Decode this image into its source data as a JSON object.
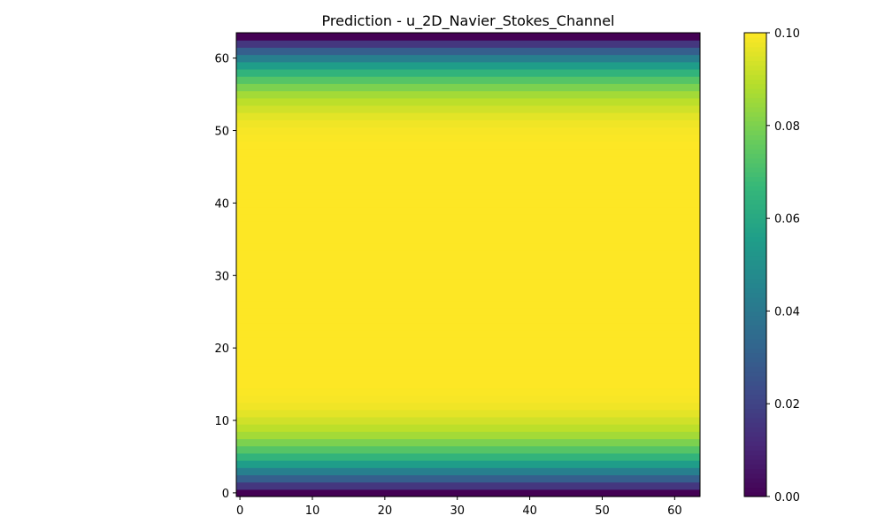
{
  "chart_data": {
    "type": "heatmap",
    "title": "Prediction - u_2D_Navier_Stokes_Channel",
    "xlabel": "",
    "ylabel": "",
    "grid": false,
    "xlim": [
      -0.5,
      63.5
    ],
    "ylim": [
      -0.5,
      63.5
    ],
    "xticks": [
      0,
      10,
      20,
      30,
      40,
      50,
      60
    ],
    "yticks": [
      0,
      10,
      20,
      30,
      40,
      50,
      60
    ],
    "colormap": "viridis",
    "colorbar": {
      "vmin": 0.0,
      "vmax": 0.1,
      "ticks": [
        0.0,
        0.02,
        0.04,
        0.06,
        0.08,
        0.1
      ],
      "tick_labels": [
        "0.00",
        "0.02",
        "0.04",
        "0.06",
        "0.08",
        "0.10"
      ]
    },
    "grid_size": [
      64,
      64
    ],
    "profile_note_rows": "value per row (y index 0..63), constant along x",
    "row_values": [
      0.0,
      0.016,
      0.03,
      0.043,
      0.055,
      0.065,
      0.073,
      0.08,
      0.086,
      0.09,
      0.093,
      0.096,
      0.098,
      0.099,
      0.0995,
      0.1,
      0.1,
      0.1,
      0.1,
      0.1,
      0.1,
      0.1,
      0.1,
      0.1,
      0.1,
      0.1,
      0.1,
      0.1,
      0.1,
      0.1,
      0.1,
      0.1,
      0.1,
      0.1,
      0.1,
      0.1,
      0.1,
      0.1,
      0.1,
      0.1,
      0.1,
      0.1,
      0.1,
      0.1,
      0.1,
      0.1,
      0.1,
      0.1,
      0.1,
      0.0995,
      0.099,
      0.098,
      0.096,
      0.093,
      0.09,
      0.086,
      0.08,
      0.073,
      0.065,
      0.055,
      0.043,
      0.03,
      0.016,
      0.0
    ]
  }
}
